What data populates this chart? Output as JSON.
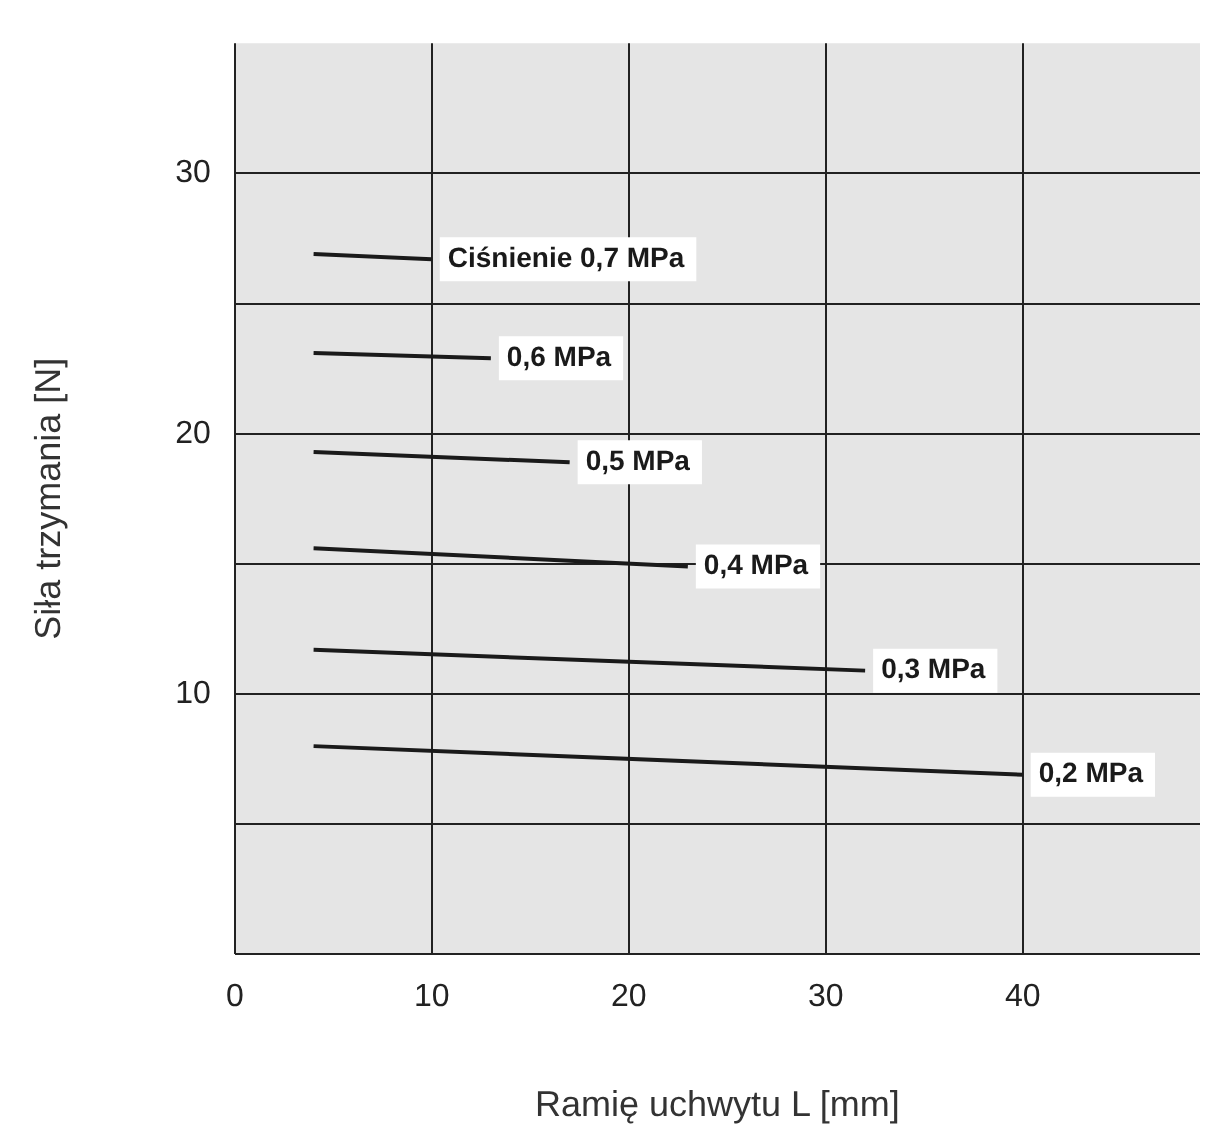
{
  "chart_data": {
    "type": "line",
    "xlabel": "Ramię uchwytu L [mm]",
    "ylabel": "Siła trzymania [N]",
    "xlim": [
      0,
      49
    ],
    "ylim": [
      0,
      35
    ],
    "xticks": [
      0,
      10,
      20,
      30,
      40
    ],
    "yticks": [
      {
        "value": 0,
        "label": null
      },
      {
        "value": 5,
        "label": null
      },
      10,
      {
        "value": 15,
        "label": null
      },
      20,
      {
        "value": 25,
        "label": null
      },
      30
    ],
    "grid": true,
    "legend": false,
    "line_style": "solid",
    "series": [
      {
        "name": "Ciśnienie 0,7 MPa",
        "color": "#1a1a1a",
        "x": [
          4,
          10
        ],
        "values": [
          26.9,
          26.7
        ]
      },
      {
        "name": "0,6 MPa",
        "color": "#1a1a1a",
        "x": [
          4,
          13
        ],
        "values": [
          23.1,
          22.9
        ]
      },
      {
        "name": "0,5 MPa",
        "color": "#1a1a1a",
        "x": [
          4,
          17
        ],
        "values": [
          19.3,
          18.9
        ]
      },
      {
        "name": "0,4 MPa",
        "color": "#1a1a1a",
        "x": [
          4,
          23
        ],
        "values": [
          15.6,
          14.9
        ]
      },
      {
        "name": "0,3 MPa",
        "color": "#1a1a1a",
        "x": [
          4,
          32
        ],
        "values": [
          11.7,
          10.9
        ]
      },
      {
        "name": "0,2 MPa",
        "color": "#1a1a1a",
        "x": [
          4,
          40
        ],
        "values": [
          8.0,
          6.9
        ]
      }
    ]
  }
}
